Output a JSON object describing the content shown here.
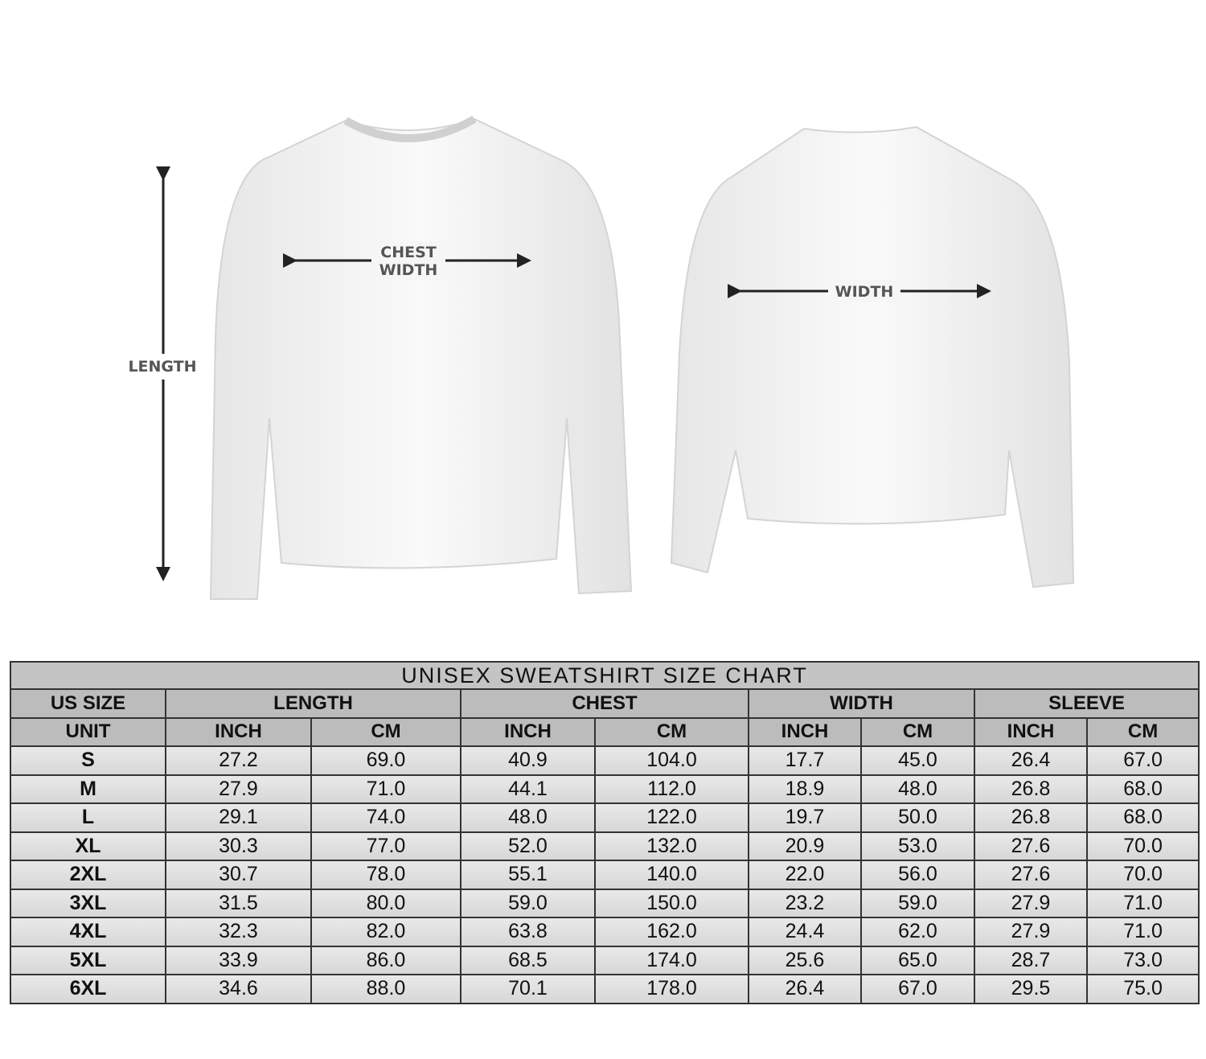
{
  "illustration": {
    "front_labels": {
      "length": "LENGTH",
      "chest_width_line1": "CHEST",
      "chest_width_line2": "WIDTH"
    },
    "back_labels": {
      "width": "WIDTH"
    }
  },
  "table": {
    "title": "UNISEX SWEATSHIRT SIZE CHART",
    "group_headers": [
      "US SIZE",
      "LENGTH",
      "CHEST",
      "WIDTH",
      "SLEEVE"
    ],
    "unit_row": [
      "UNIT",
      "INCH",
      "CM",
      "INCH",
      "CM",
      "INCH",
      "CM",
      "INCH",
      "CM"
    ],
    "rows": [
      [
        "S",
        "27.2",
        "69.0",
        "40.9",
        "104.0",
        "17.7",
        "45.0",
        "26.4",
        "67.0"
      ],
      [
        "M",
        "27.9",
        "71.0",
        "44.1",
        "112.0",
        "18.9",
        "48.0",
        "26.8",
        "68.0"
      ],
      [
        "L",
        "29.1",
        "74.0",
        "48.0",
        "122.0",
        "19.7",
        "50.0",
        "26.8",
        "68.0"
      ],
      [
        "XL",
        "30.3",
        "77.0",
        "52.0",
        "132.0",
        "20.9",
        "53.0",
        "27.6",
        "70.0"
      ],
      [
        "2XL",
        "30.7",
        "78.0",
        "55.1",
        "140.0",
        "22.0",
        "56.0",
        "27.6",
        "70.0"
      ],
      [
        "3XL",
        "31.5",
        "80.0",
        "59.0",
        "150.0",
        "23.2",
        "59.0",
        "27.9",
        "71.0"
      ],
      [
        "4XL",
        "32.3",
        "82.0",
        "63.8",
        "162.0",
        "24.4",
        "62.0",
        "27.9",
        "71.0"
      ],
      [
        "5XL",
        "33.9",
        "86.0",
        "68.5",
        "174.0",
        "25.6",
        "65.0",
        "28.7",
        "73.0"
      ],
      [
        "6XL",
        "34.6",
        "88.0",
        "70.1",
        "178.0",
        "26.4",
        "67.0",
        "29.5",
        "75.0"
      ]
    ]
  }
}
